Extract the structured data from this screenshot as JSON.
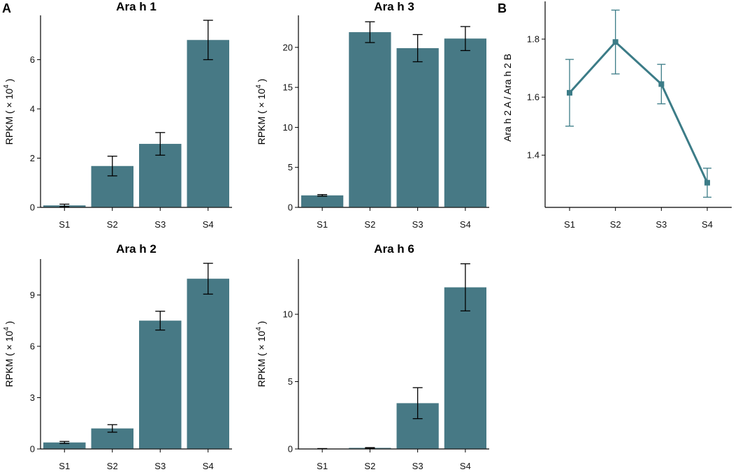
{
  "panel_labels": {
    "a": "A",
    "b": "B"
  },
  "colors": {
    "bar": "#477985",
    "line": "#3c7c87",
    "axis": "#000000"
  },
  "chart_data": [
    {
      "id": "ara-h-1",
      "type": "bar",
      "title": "Ara h 1",
      "ylabel_prefix": "RPKM ( × 10",
      "ylabel_exp": "4",
      "ylabel_suffix": ")",
      "categories": [
        "S1",
        "S2",
        "S3",
        "S4"
      ],
      "values": [
        0.08,
        1.68,
        2.58,
        6.8
      ],
      "errors": [
        0.05,
        0.4,
        0.46,
        0.8
      ],
      "ylim": [
        0,
        7.8
      ],
      "yticks": [
        0,
        2,
        4,
        6
      ]
    },
    {
      "id": "ara-h-3",
      "type": "bar",
      "title": "Ara h 3",
      "ylabel_prefix": "RPKM ( × 10",
      "ylabel_exp": "4",
      "ylabel_suffix": ")",
      "categories": [
        "S1",
        "S2",
        "S3",
        "S4"
      ],
      "values": [
        1.5,
        21.9,
        19.9,
        21.1
      ],
      "errors": [
        0.1,
        1.3,
        1.7,
        1.5
      ],
      "ylim": [
        0,
        24
      ],
      "yticks": [
        0,
        5,
        10,
        15,
        20
      ]
    },
    {
      "id": "ara-h-2",
      "type": "bar",
      "title": "Ara h 2",
      "ylabel_prefix": "RPKM ( × 10",
      "ylabel_exp": "4",
      "ylabel_suffix": ")",
      "categories": [
        "S1",
        "S2",
        "S3",
        "S4"
      ],
      "values": [
        0.38,
        1.2,
        7.5,
        9.95
      ],
      "errors": [
        0.06,
        0.22,
        0.55,
        0.9
      ],
      "ylim": [
        0,
        11.1
      ],
      "yticks": [
        0,
        3,
        6,
        9
      ]
    },
    {
      "id": "ara-h-6",
      "type": "bar",
      "title": "Ara h 6",
      "ylabel_prefix": "RPKM ( × 10",
      "ylabel_exp": "4",
      "ylabel_suffix": ")",
      "categories": [
        "S1",
        "S2",
        "S3",
        "S4"
      ],
      "values": [
        0.02,
        0.08,
        3.4,
        12.0
      ],
      "errors": [
        0.01,
        0.02,
        1.15,
        1.75
      ],
      "ylim": [
        0,
        14.1
      ],
      "yticks": [
        0,
        5,
        10
      ]
    },
    {
      "id": "ara-h-2-ratio",
      "type": "line",
      "title": "",
      "ylabel": "Ara h 2 A / Ara h 2 B",
      "categories": [
        "S1",
        "S2",
        "S3",
        "S4"
      ],
      "values": [
        1.615,
        1.79,
        1.645,
        1.305
      ],
      "errors": [
        0.115,
        0.11,
        0.068,
        0.05
      ],
      "ylim": [
        1.22,
        1.93
      ],
      "yticks": [
        1.4,
        1.6,
        1.8
      ]
    }
  ]
}
